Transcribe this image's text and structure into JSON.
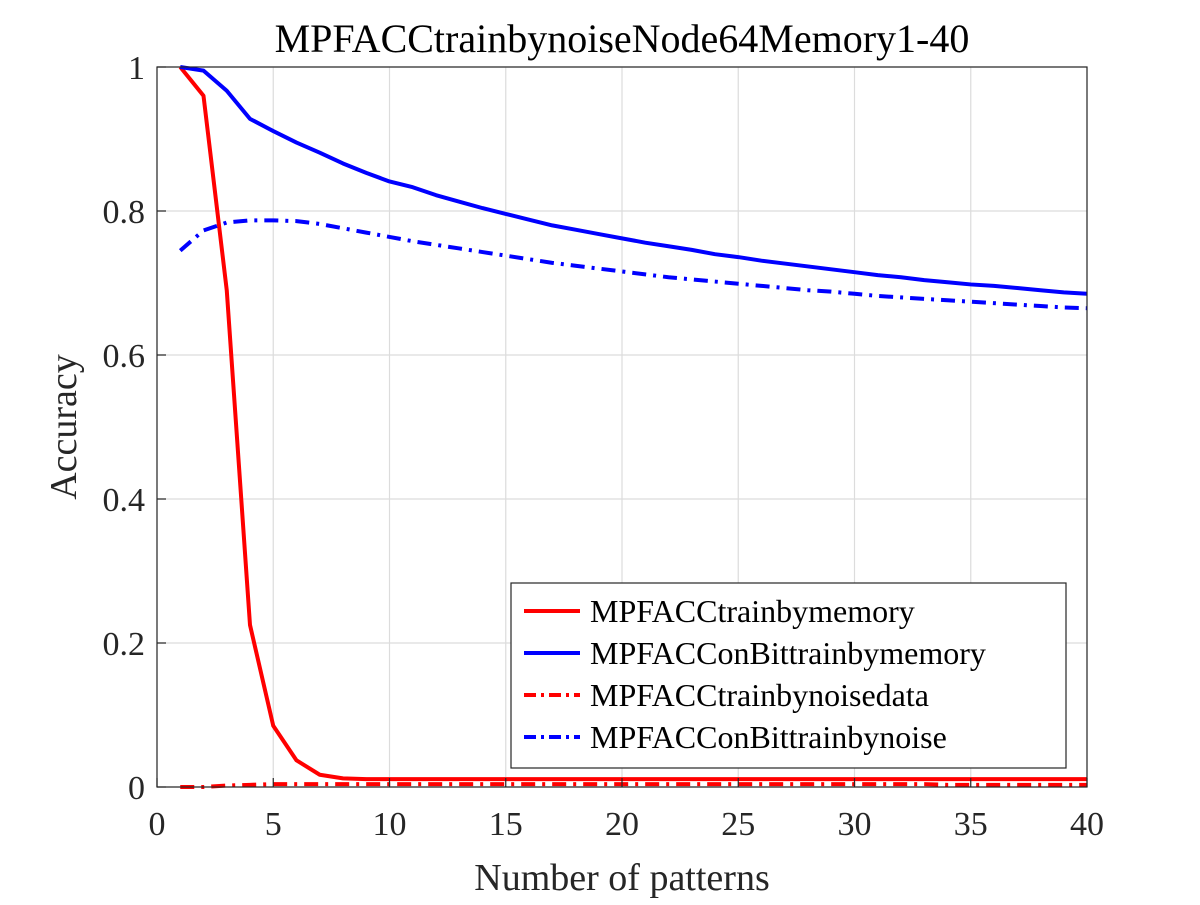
{
  "chart_data": {
    "type": "line",
    "title": "MPFACCtrainbynoiseNode64Memory1-40",
    "xlabel": "Number of patterns",
    "ylabel": "Accuracy",
    "xlim": [
      0,
      40
    ],
    "ylim": [
      0,
      1
    ],
    "xticks": [
      0,
      5,
      10,
      15,
      20,
      25,
      30,
      35,
      40
    ],
    "xtick_labels": [
      "0",
      "5",
      "10",
      "15",
      "20",
      "25",
      "30",
      "35",
      "40"
    ],
    "yticks": [
      0,
      0.2,
      0.4,
      0.6,
      0.8,
      1
    ],
    "ytick_labels": [
      "0",
      "0.2",
      "0.4",
      "0.6",
      "0.8",
      "1"
    ],
    "grid": true,
    "legend_position": "bottom-right",
    "x": [
      1,
      2,
      3,
      4,
      5,
      6,
      7,
      8,
      9,
      10,
      11,
      12,
      13,
      14,
      15,
      16,
      17,
      18,
      19,
      20,
      21,
      22,
      23,
      24,
      25,
      26,
      27,
      28,
      29,
      30,
      31,
      32,
      33,
      34,
      35,
      36,
      37,
      38,
      39,
      40
    ],
    "series": [
      {
        "name": "MPFACCtrainbymemory",
        "color": "#ff0000",
        "dash": "solid",
        "values": [
          1.0,
          0.96,
          0.69,
          0.225,
          0.085,
          0.037,
          0.017,
          0.012,
          0.011,
          0.011,
          0.011,
          0.011,
          0.011,
          0.011,
          0.011,
          0.011,
          0.011,
          0.011,
          0.011,
          0.011,
          0.011,
          0.011,
          0.011,
          0.011,
          0.011,
          0.011,
          0.011,
          0.011,
          0.011,
          0.011,
          0.011,
          0.011,
          0.011,
          0.011,
          0.011,
          0.011,
          0.011,
          0.011,
          0.011,
          0.011
        ]
      },
      {
        "name": "MPFACConBittrainbymemory",
        "color": "#0000ff",
        "dash": "solid",
        "values": [
          1.0,
          0.995,
          0.967,
          0.928,
          0.911,
          0.895,
          0.881,
          0.866,
          0.853,
          0.841,
          0.833,
          0.822,
          0.813,
          0.804,
          0.796,
          0.788,
          0.78,
          0.774,
          0.768,
          0.762,
          0.756,
          0.751,
          0.746,
          0.74,
          0.736,
          0.731,
          0.727,
          0.723,
          0.719,
          0.715,
          0.711,
          0.708,
          0.704,
          0.701,
          0.698,
          0.696,
          0.693,
          0.69,
          0.687,
          0.685
        ]
      },
      {
        "name": "MPFACCtrainbynoisedata",
        "color": "#ff0000",
        "dash": "dashdot",
        "values": [
          0.0,
          0.0,
          0.002,
          0.003,
          0.004,
          0.004,
          0.004,
          0.004,
          0.004,
          0.004,
          0.004,
          0.004,
          0.004,
          0.004,
          0.004,
          0.004,
          0.004,
          0.004,
          0.004,
          0.004,
          0.004,
          0.004,
          0.004,
          0.004,
          0.004,
          0.004,
          0.004,
          0.004,
          0.004,
          0.004,
          0.004,
          0.004,
          0.004,
          0.003,
          0.003,
          0.003,
          0.003,
          0.003,
          0.003,
          0.003
        ]
      },
      {
        "name": "MPFACConBittrainbynoise",
        "color": "#0000ff",
        "dash": "dashdot",
        "values": [
          0.745,
          0.773,
          0.784,
          0.787,
          0.787,
          0.786,
          0.782,
          0.776,
          0.77,
          0.764,
          0.758,
          0.753,
          0.748,
          0.743,
          0.738,
          0.733,
          0.728,
          0.724,
          0.72,
          0.716,
          0.712,
          0.708,
          0.705,
          0.702,
          0.699,
          0.696,
          0.693,
          0.69,
          0.688,
          0.685,
          0.682,
          0.68,
          0.678,
          0.676,
          0.674,
          0.672,
          0.67,
          0.668,
          0.666,
          0.665
        ]
      }
    ]
  }
}
